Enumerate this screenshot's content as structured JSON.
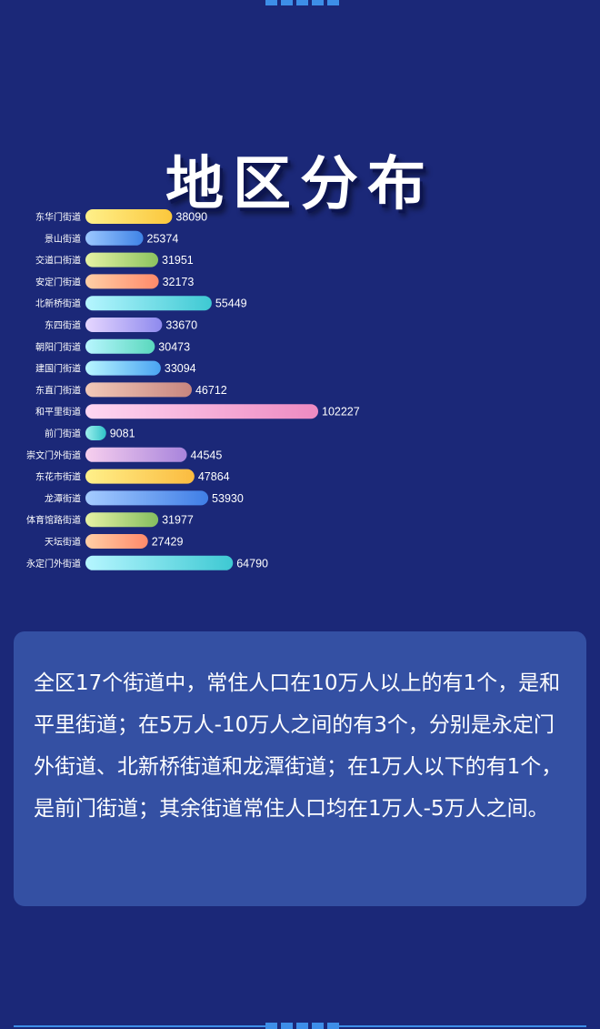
{
  "header": {
    "title": "地区分布"
  },
  "colors": {
    "background": "#1b2878",
    "panel": "#3450a3",
    "accent": "#3d8ee8",
    "bar_palette": [
      [
        "#fff08a",
        "#fbc73c"
      ],
      [
        "#9cc7ff",
        "#3f83e6"
      ],
      [
        "#e6f2a3",
        "#8bc35f"
      ],
      [
        "#ffcfa6",
        "#ff8a6a"
      ],
      [
        "#b6f6ff",
        "#3ec9d3"
      ],
      [
        "#e6d6ff",
        "#8e8aee"
      ],
      [
        "#b8f6ff",
        "#5ad8bd"
      ],
      [
        "#b8f6ff",
        "#4aa4f2"
      ],
      [
        "#f2c9b8",
        "#c7857f"
      ],
      [
        "#ffd7f2",
        "#ee8ac1"
      ],
      [
        "#9ff0ee",
        "#2fc2c8"
      ],
      [
        "#f7cfee",
        "#a884dc"
      ],
      [
        "#fff08a",
        "#fbbb3f"
      ],
      [
        "#a5cbff",
        "#3f7ee6"
      ],
      [
        "#e7f2a3",
        "#84bd5f"
      ],
      [
        "#ffcfa6",
        "#ff8a6a"
      ],
      [
        "#b6f6ff",
        "#3ec9d3"
      ]
    ]
  },
  "chart_data": {
    "type": "bar",
    "orientation": "horizontal",
    "categories": [
      "东华门街道",
      "景山街道",
      "交道口街道",
      "安定门街道",
      "北新桥街道",
      "东四街道",
      "朝阳门街道",
      "建国门街道",
      "东直门街道",
      "和平里街道",
      "前门街道",
      "崇文门外街道",
      "东花市街道",
      "龙潭街道",
      "体育馆路街道",
      "天坛街道",
      "永定门外街道"
    ],
    "values": [
      38090,
      25374,
      31951,
      32173,
      55449,
      33670,
      30473,
      33094,
      46712,
      102227,
      9081,
      44545,
      47864,
      53930,
      31977,
      27429,
      64790
    ],
    "title": "地区分布",
    "xlim": [
      0,
      102227
    ],
    "grid": false,
    "legend": "none"
  },
  "summary": {
    "text": "全区17个街道中，常住人口在10万人以上的有1个，是和平里街道；在5万人-10万人之间的有3个，分别是永定门外街道、北新桥街道和龙潭街道；在1万人以下的有1个，是前门街道；其余街道常住人口均在1万人-5万人之间。"
  }
}
